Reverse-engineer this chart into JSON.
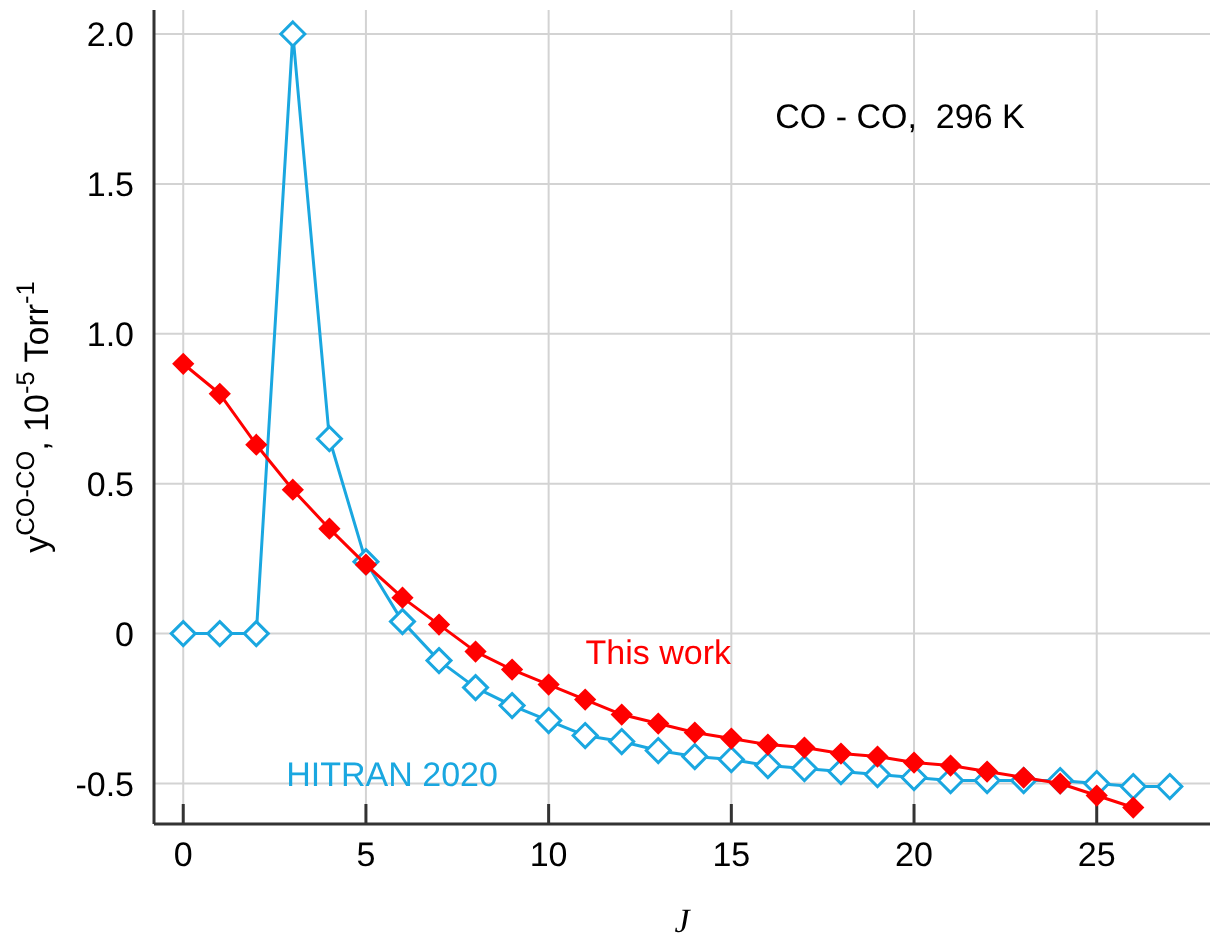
{
  "chart_data": {
    "type": "line",
    "xlabel": "J",
    "ylabel": "y$^{CO-CO}$, 10$^{-5}$ Torr$^{-1}$",
    "annotations": [
      "CO - CO,  296 K"
    ],
    "xlim": [
      -0.8,
      28.1
    ],
    "ylim": [
      -0.635,
      2.08
    ],
    "xticks": [
      0,
      5,
      10,
      15,
      20,
      25
    ],
    "yticks": [
      {
        "value": -0.5,
        "label": "-0.5"
      },
      0,
      {
        "value": 0.5,
        "label": "0.5"
      },
      {
        "value": 1,
        "label": "1.0"
      },
      {
        "value": 1.5,
        "label": "1.5"
      },
      {
        "value": 2,
        "label": "2.0"
      }
    ],
    "grid": true,
    "marker": "diamond",
    "line_style": "solid",
    "series": [
      {
        "name": "This work",
        "color": "#ff0000",
        "x": [
          0,
          1,
          2,
          3,
          4,
          5,
          6,
          7,
          8,
          9,
          10,
          11,
          12,
          13,
          14,
          15,
          16,
          17,
          18,
          19,
          20,
          21,
          22,
          23,
          24,
          25,
          26
        ],
        "values": [
          0.9,
          0.8,
          0.63,
          0.48,
          0.35,
          0.23,
          0.12,
          0.03,
          -0.06,
          -0.12,
          -0.17,
          -0.22,
          -0.27,
          -0.3,
          -0.33,
          -0.35,
          -0.37,
          -0.38,
          -0.4,
          -0.41,
          -0.43,
          -0.44,
          -0.46,
          -0.48,
          -0.5,
          -0.54,
          -0.58
        ]
      },
      {
        "name": "HITRAN 2020",
        "color": "#1aa7e0",
        "x": [
          0,
          1,
          2,
          3,
          4,
          5,
          6,
          7,
          8,
          9,
          10,
          11,
          12,
          13,
          14,
          15,
          16,
          17,
          18,
          19,
          20,
          21,
          22,
          23,
          24,
          25,
          26,
          27
        ],
        "values": [
          0,
          0,
          0,
          2.0,
          0.65,
          0.24,
          0.04,
          -0.09,
          -0.18,
          -0.24,
          -0.29,
          -0.34,
          -0.36,
          -0.39,
          -0.41,
          -0.42,
          -0.44,
          -0.45,
          -0.46,
          -0.47,
          -0.48,
          -0.49,
          -0.49,
          -0.49,
          -0.49,
          -0.5,
          -0.51,
          -0.51
        ]
      }
    ]
  }
}
